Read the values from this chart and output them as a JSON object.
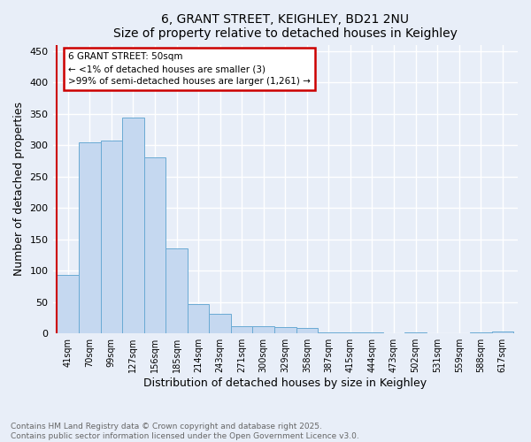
{
  "title1": "6, GRANT STREET, KEIGHLEY, BD21 2NU",
  "title2": "Size of property relative to detached houses in Keighley",
  "xlabel": "Distribution of detached houses by size in Keighley",
  "ylabel": "Number of detached properties",
  "categories": [
    "41sqm",
    "70sqm",
    "99sqm",
    "127sqm",
    "156sqm",
    "185sqm",
    "214sqm",
    "243sqm",
    "271sqm",
    "300sqm",
    "329sqm",
    "358sqm",
    "387sqm",
    "415sqm",
    "444sqm",
    "473sqm",
    "502sqm",
    "531sqm",
    "559sqm",
    "588sqm",
    "617sqm"
  ],
  "values": [
    93,
    305,
    307,
    344,
    280,
    135,
    47,
    31,
    11,
    11,
    10,
    9,
    1,
    1,
    2,
    0,
    1,
    0,
    0,
    1,
    3
  ],
  "bar_color": "#c5d8f0",
  "bar_edge_color": "#6aaad4",
  "annotation_box_text": "6 GRANT STREET: 50sqm\n← <1% of detached houses are smaller (3)\n>99% of semi-detached houses are larger (1,261) →",
  "annotation_box_color": "#ffffff",
  "annotation_box_edge_color": "#cc0000",
  "vline_color": "#cc0000",
  "ylim": [
    0,
    460
  ],
  "yticks": [
    0,
    50,
    100,
    150,
    200,
    250,
    300,
    350,
    400,
    450
  ],
  "footer_text": "Contains HM Land Registry data © Crown copyright and database right 2025.\nContains public sector information licensed under the Open Government Licence v3.0.",
  "bg_color": "#e8eef8",
  "plot_bg_color": "#e8eef8",
  "grid_color": "#ffffff"
}
